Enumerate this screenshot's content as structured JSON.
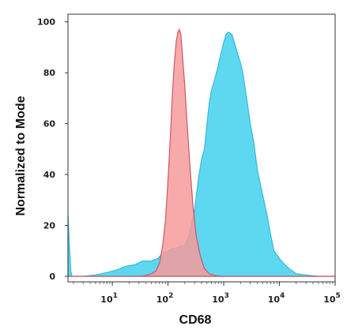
{
  "chart_data": {
    "type": "area",
    "xlabel": "CD68",
    "ylabel": "Normalized to Mode",
    "x_scale": "log",
    "xlim": [
      1.6,
      100000
    ],
    "ylim": [
      0,
      100
    ],
    "x_ticks": [
      {
        "value": 10,
        "base": "10",
        "exp": "1"
      },
      {
        "value": 100,
        "base": "10",
        "exp": "2"
      },
      {
        "value": 1000,
        "base": "10",
        "exp": "3"
      },
      {
        "value": 10000,
        "base": "10",
        "exp": "4"
      },
      {
        "value": 100000,
        "base": "10",
        "exp": "5"
      }
    ],
    "y_ticks": [
      0,
      20,
      40,
      60,
      80,
      100
    ],
    "grid": false,
    "legend": "none",
    "series": [
      {
        "fill": "#5dd8f0",
        "stroke": "#3ab8d8",
        "points": [
          [
            1.6,
            24
          ],
          [
            1.7,
            12
          ],
          [
            1.8,
            2
          ],
          [
            1.9,
            0
          ],
          [
            3,
            0
          ],
          [
            5,
            0.5
          ],
          [
            8,
            1.5
          ],
          [
            12,
            2.5
          ],
          [
            18,
            4
          ],
          [
            25,
            4.5
          ],
          [
            35,
            6
          ],
          [
            50,
            6
          ],
          [
            65,
            7
          ],
          [
            80,
            9
          ],
          [
            100,
            10
          ],
          [
            120,
            11
          ],
          [
            140,
            11
          ],
          [
            170,
            12
          ],
          [
            200,
            12
          ],
          [
            240,
            16
          ],
          [
            300,
            26
          ],
          [
            350,
            38
          ],
          [
            400,
            46
          ],
          [
            450,
            50
          ],
          [
            500,
            60
          ],
          [
            550,
            68
          ],
          [
            600,
            73
          ],
          [
            700,
            78
          ],
          [
            800,
            83
          ],
          [
            900,
            88
          ],
          [
            1000,
            92
          ],
          [
            1100,
            95
          ],
          [
            1200,
            96
          ],
          [
            1400,
            95
          ],
          [
            1600,
            91
          ],
          [
            1800,
            87
          ],
          [
            2000,
            84
          ],
          [
            2200,
            80
          ],
          [
            2500,
            72
          ],
          [
            3000,
            60
          ],
          [
            3500,
            52
          ],
          [
            4000,
            42
          ],
          [
            5000,
            32
          ],
          [
            6000,
            24
          ],
          [
            7000,
            16
          ],
          [
            8000,
            10
          ],
          [
            10000,
            7
          ],
          [
            12000,
            5
          ],
          [
            15000,
            3
          ],
          [
            20000,
            1
          ],
          [
            30000,
            0.5
          ],
          [
            50000,
            0
          ],
          [
            100000,
            0
          ]
        ]
      },
      {
        "fill": "#f79a9a",
        "stroke": "#c85a6a",
        "opacity": 0.85,
        "points": [
          [
            1.6,
            0
          ],
          [
            30,
            0
          ],
          [
            40,
            0.3
          ],
          [
            50,
            1
          ],
          [
            60,
            2
          ],
          [
            70,
            5
          ],
          [
            80,
            12
          ],
          [
            90,
            22
          ],
          [
            100,
            38
          ],
          [
            110,
            55
          ],
          [
            120,
            72
          ],
          [
            130,
            84
          ],
          [
            140,
            92
          ],
          [
            150,
            96
          ],
          [
            160,
            97
          ],
          [
            170,
            95
          ],
          [
            180,
            88
          ],
          [
            200,
            75
          ],
          [
            220,
            60
          ],
          [
            250,
            42
          ],
          [
            280,
            28
          ],
          [
            320,
            16
          ],
          [
            380,
            8
          ],
          [
            450,
            3
          ],
          [
            550,
            1
          ],
          [
            700,
            0.3
          ],
          [
            900,
            0
          ],
          [
            100000,
            0
          ]
        ]
      }
    ]
  }
}
